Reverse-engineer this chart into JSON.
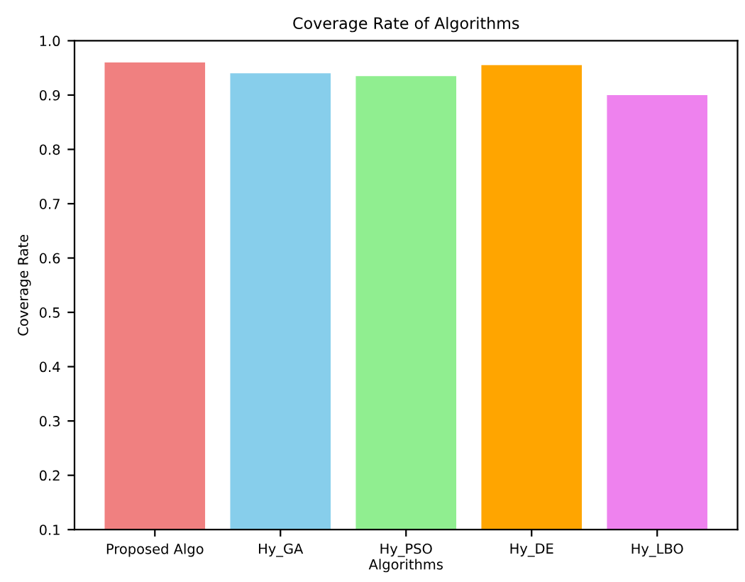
{
  "chart_data": {
    "type": "bar",
    "title": "Coverage Rate of Algorithms",
    "xlabel": "Algorithms",
    "ylabel": "Coverage Rate",
    "categories": [
      "Proposed Algo",
      "Hy_GA",
      "Hy_PSO",
      "Hy_DE",
      "Hy_LBO"
    ],
    "values": [
      0.96,
      0.94,
      0.935,
      0.955,
      0.9
    ],
    "colors": [
      "#f08080",
      "#87ceeb",
      "#90ee90",
      "#ffa500",
      "#ee82ee"
    ],
    "ylim": [
      0.1,
      1.0
    ],
    "yticks": [
      0.1,
      0.2,
      0.3,
      0.4,
      0.5,
      0.6,
      0.7,
      0.8,
      0.9,
      {
        "value": 1.0,
        "label": "1.0"
      }
    ],
    "grid": false,
    "legend": false
  }
}
